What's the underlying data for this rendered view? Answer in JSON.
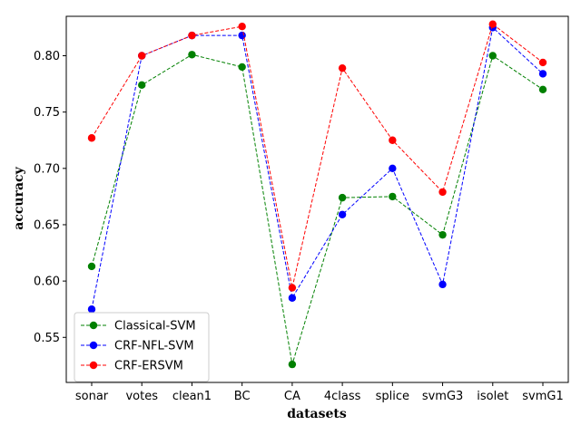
{
  "chart_data": {
    "type": "line",
    "xlabel": "datasets",
    "ylabel": "accuracy",
    "categories": [
      "sonar",
      "votes",
      "clean1",
      "BC",
      "CA",
      "4class",
      "splice",
      "svmG3",
      "isolet",
      "svmG1"
    ],
    "ylim": [
      0.51,
      0.835
    ],
    "yticks": [
      0.55,
      0.6,
      0.65,
      0.7,
      0.75,
      0.8
    ],
    "ytick_labels": [
      "0.55",
      "0.60",
      "0.65",
      "0.70",
      "0.75",
      "0.80"
    ],
    "grid": false,
    "legend_position": "lower-left",
    "series": [
      {
        "name": "Classical-SVM",
        "color": "#008000",
        "line_style": "dashed",
        "marker": "circle",
        "values": [
          0.613,
          0.774,
          0.801,
          0.79,
          0.526,
          0.674,
          0.675,
          0.641,
          0.8,
          0.77
        ]
      },
      {
        "name": "CRF-NFL-SVM",
        "color": "#0000ff",
        "line_style": "dashed",
        "marker": "circle",
        "values": [
          0.575,
          0.8,
          0.818,
          0.818,
          0.585,
          0.659,
          0.7,
          0.597,
          0.825,
          0.784
        ]
      },
      {
        "name": "CRF-ERSVM",
        "color": "#ff0000",
        "line_style": "dashed",
        "marker": "circle",
        "values": [
          0.727,
          0.8,
          0.818,
          0.826,
          0.594,
          0.789,
          0.725,
          0.679,
          0.828,
          0.794
        ]
      }
    ]
  }
}
